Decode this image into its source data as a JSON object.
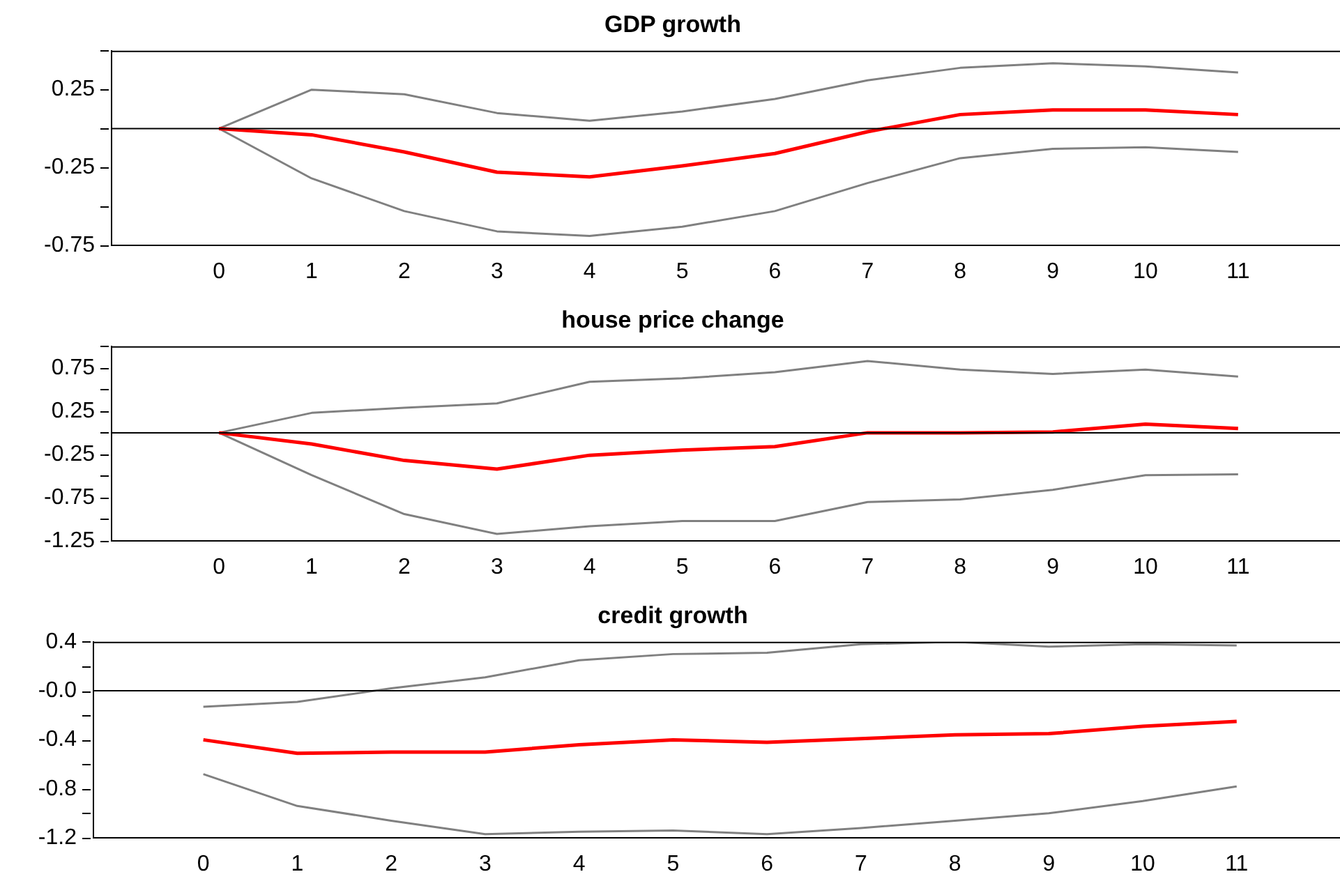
{
  "chart_data": [
    {
      "type": "line",
      "title": "GDP growth",
      "x": [
        0,
        1,
        2,
        3,
        4,
        5,
        6,
        7,
        8,
        9,
        10,
        11
      ],
      "xlim": [
        -1.16,
        12.1
      ],
      "xticks": [
        0,
        1,
        2,
        3,
        4,
        5,
        6,
        7,
        8,
        9,
        10,
        11
      ],
      "ylim": [
        -0.75,
        0.5
      ],
      "yticks": [
        {
          "value": 0.5,
          "label": null
        },
        0.25,
        {
          "value": 0,
          "label": null
        },
        -0.25,
        {
          "value": -0.5,
          "label": null
        },
        -0.75
      ],
      "grid": false,
      "legend": false,
      "marker": "none",
      "line_style": "solid",
      "ref_lines": [
        {
          "axis": "y",
          "value": 0,
          "color": "#000000"
        }
      ],
      "series": [
        {
          "color": "#808080",
          "values": [
            0,
            0.25,
            0.22,
            0.1,
            0.05,
            0.11,
            0.19,
            0.31,
            0.39,
            0.42,
            0.4,
            0.36
          ]
        },
        {
          "color": "#808080",
          "values": [
            0,
            -0.32,
            -0.53,
            -0.66,
            -0.69,
            -0.63,
            -0.53,
            -0.35,
            -0.19,
            -0.13,
            -0.12,
            -0.15
          ]
        },
        {
          "color": "#ff0000",
          "values": [
            0,
            -0.04,
            -0.15,
            -0.28,
            -0.31,
            -0.24,
            -0.16,
            -0.02,
            0.09,
            0.12,
            0.12,
            0.09
          ]
        }
      ]
    },
    {
      "type": "line",
      "title": "house price change",
      "x": [
        0,
        1,
        2,
        3,
        4,
        5,
        6,
        7,
        8,
        9,
        10,
        11
      ],
      "xlim": [
        -1.16,
        12.1
      ],
      "xticks": [
        0,
        1,
        2,
        3,
        4,
        5,
        6,
        7,
        8,
        9,
        10,
        11
      ],
      "ylim": [
        -1.25,
        1.0
      ],
      "yticks": [
        {
          "value": 1.0,
          "label": null
        },
        0.75,
        {
          "value": 0.5,
          "label": null
        },
        0.25,
        {
          "value": 0,
          "label": null
        },
        -0.25,
        {
          "value": -0.5,
          "label": null
        },
        -0.75,
        {
          "value": -1.0,
          "label": null
        },
        -1.25
      ],
      "grid": false,
      "legend": false,
      "marker": "none",
      "line_style": "solid",
      "ref_lines": [
        {
          "axis": "y",
          "value": 0,
          "color": "#000000"
        }
      ],
      "series": [
        {
          "color": "#808080",
          "values": [
            0,
            0.23,
            0.29,
            0.34,
            0.59,
            0.63,
            0.7,
            0.83,
            0.73,
            0.68,
            0.73,
            0.65
          ]
        },
        {
          "color": "#808080",
          "values": [
            0,
            -0.49,
            -0.94,
            -1.17,
            -1.08,
            -1.02,
            -1.02,
            -0.8,
            -0.77,
            -0.66,
            -0.49,
            -0.48
          ]
        },
        {
          "color": "#ff0000",
          "values": [
            0,
            -0.13,
            -0.32,
            -0.42,
            -0.26,
            -0.2,
            -0.16,
            0,
            0,
            0.01,
            0.1,
            0.05
          ]
        }
      ]
    },
    {
      "type": "line",
      "title": "credit growth",
      "x": [
        0,
        1,
        2,
        3,
        4,
        5,
        6,
        7,
        8,
        9,
        10,
        11
      ],
      "xlim": [
        -1.17,
        12.1
      ],
      "xticks": [
        0,
        1,
        2,
        3,
        4,
        5,
        6,
        7,
        8,
        9,
        10,
        11
      ],
      "ylim": [
        -1.2,
        0.4
      ],
      "yticks": [
        0.4,
        {
          "value": 0.2,
          "label": null
        },
        {
          "value": 0,
          "label": "-0.0"
        },
        {
          "value": -0.2,
          "label": null
        },
        -0.4,
        {
          "value": -0.6,
          "label": null
        },
        -0.8,
        {
          "value": -1.0,
          "label": null
        },
        -1.2
      ],
      "grid": false,
      "legend": false,
      "marker": "none",
      "line_style": "solid",
      "ref_lines": [
        {
          "axis": "y",
          "value": 0,
          "color": "#000000"
        }
      ],
      "series": [
        {
          "color": "#808080",
          "values": [
            -0.13,
            -0.09,
            0.02,
            0.11,
            0.25,
            0.3,
            0.31,
            0.38,
            0.4,
            0.36,
            0.38,
            0.37
          ]
        },
        {
          "color": "#808080",
          "values": [
            -0.68,
            -0.94,
            -1.06,
            -1.17,
            -1.15,
            -1.14,
            -1.17,
            -1.12,
            -1.06,
            -1.0,
            -0.9,
            -0.78
          ]
        },
        {
          "color": "#ff0000",
          "values": [
            -0.4,
            -0.51,
            -0.5,
            -0.5,
            -0.44,
            -0.4,
            -0.42,
            -0.39,
            -0.36,
            -0.35,
            -0.29,
            -0.25
          ]
        }
      ]
    }
  ]
}
